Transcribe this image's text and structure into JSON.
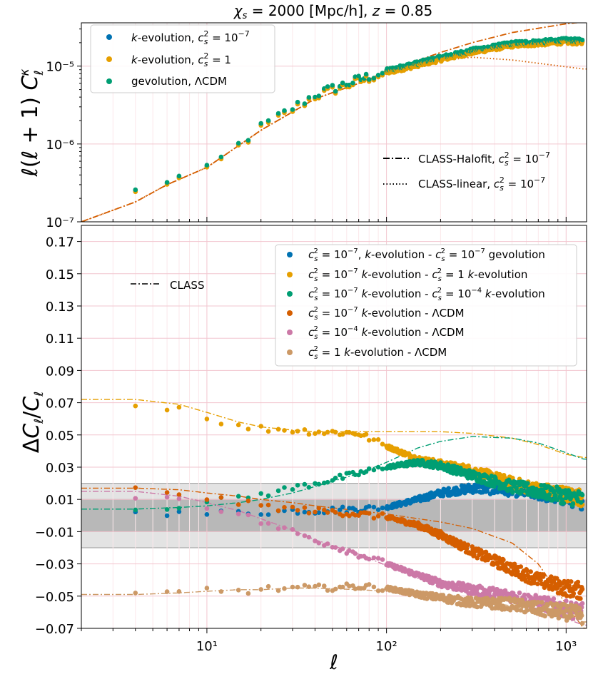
{
  "chart_data": [
    {
      "type": "scatter",
      "title": "χ_s = 2000 [Mpc/h], z = 0.85",
      "xlabel": "ℓ",
      "ylabel": "ℓ(ℓ+1) C_ℓ^κ",
      "xscale": "log",
      "yscale": "log",
      "xlim": [
        2,
        1300
      ],
      "ylim": [
        1e-07,
        3.6e-05
      ],
      "x_ticks": [
        10,
        100,
        1000
      ],
      "x_tick_labels": [
        "10¹",
        "10²",
        "10³"
      ],
      "y_ticks": [
        1e-07,
        1e-06,
        1e-05
      ],
      "y_tick_labels": [
        "10⁻⁷",
        "10⁻⁶",
        "10⁻⁵"
      ],
      "grid": true,
      "series": [
        {
          "name": "k-evolution, c_s² = 10⁻⁷",
          "color": "#0072B2",
          "kind": "points",
          "model": "kevol_1e7"
        },
        {
          "name": "k-evolution, c_s² = 1",
          "color": "#E69F00",
          "kind": "points",
          "model": "kevol_1"
        },
        {
          "name": "gevolution, ΛCDM",
          "color": "#009E73",
          "kind": "points",
          "model": "gevol"
        },
        {
          "name": "CLASS-Halofit, c_s² = 10⁻⁷",
          "color": "#D55E00",
          "kind": "dashdot",
          "model": "halofit"
        },
        {
          "name": "CLASS-linear, c_s² = 10⁻⁷",
          "color": "#D55E00",
          "kind": "dotted",
          "model": "linear"
        }
      ],
      "anchor_points": {
        "x": [
          2,
          4,
          6,
          10,
          20,
          40,
          70,
          100,
          200,
          300,
          500,
          1000,
          1250
        ],
        "y_halofit": [
          1e-07,
          1.8e-07,
          3e-07,
          5e-07,
          1.5e-06,
          3.8e-06,
          6e-06,
          8.5e-06,
          1.5e-05,
          2e-05,
          2.7e-05,
          3.5e-05,
          3.7e-05
        ],
        "y_linear": [
          1e-07,
          1.8e-07,
          3e-07,
          5e-07,
          1.5e-06,
          3.8e-06,
          6e-06,
          8.3e-06,
          1.18e-05,
          1.3e-05,
          1.2e-05,
          9.8e-06,
          9.2e-06
        ],
        "y_sim": [
          null,
          null,
          3.3e-07,
          4.5e-07,
          1.6e-06,
          4.2e-06,
          6.5e-06,
          8.5e-06,
          1.25e-05,
          1.55e-05,
          1.9e-05,
          2.1e-05,
          2.05e-05
        ]
      },
      "legend": {
        "position": "upper-left",
        "entries": [
          "k-evolution, c_s² = 10⁻⁷",
          "k-evolution, c_s² = 1",
          "gevolution, ΛCDM"
        ]
      },
      "legend2": {
        "position": "lower-right",
        "entries": [
          "CLASS-Halofit, c_s² = 10⁻⁷",
          "CLASS-linear, c_s² = 10⁻⁷"
        ]
      }
    },
    {
      "type": "scatter",
      "xlabel": "ℓ",
      "ylabel": "ΔC_ℓ / C_ℓ",
      "xscale": "log",
      "xlim": [
        2,
        1300
      ],
      "ylim": [
        -0.07,
        0.18
      ],
      "x_ticks": [
        10,
        100,
        1000
      ],
      "x_tick_labels": [
        "10¹",
        "10²",
        "10³"
      ],
      "y_ticks": [
        -0.07,
        -0.05,
        -0.03,
        -0.01,
        0.01,
        0.03,
        0.05,
        0.07,
        0.09,
        0.11,
        0.13,
        0.15,
        0.17
      ],
      "y_tick_labels": [
        "−0.07",
        "−0.05",
        "−0.03",
        "−0.01",
        "0.01",
        "0.03",
        "0.05",
        "0.07",
        "0.09",
        "0.11",
        "0.13",
        "0.15",
        "0.17"
      ],
      "grid": true,
      "bands": [
        {
          "range": [
            -0.02,
            0.02
          ],
          "color": "#e3e3e3"
        },
        {
          "range": [
            -0.01,
            0.01
          ],
          "color": "#b8b8b8"
        }
      ],
      "x_points": [
        4,
        7,
        10,
        15,
        20,
        30,
        40,
        70,
        100,
        150,
        200,
        300,
        500,
        700,
        1000,
        1250
      ],
      "series": [
        {
          "name": "c_s² = 10⁻⁷, k-evolution - c_s² = 10⁻⁷ gevolution",
          "color": "#0072B2",
          "values": [
            0.004,
            0.001,
            0.001,
            0.002,
            0.002,
            0.003,
            0.003,
            0.004,
            0.005,
            0.01,
            0.014,
            0.017,
            0.016,
            0.014,
            0.011,
            0.009
          ],
          "class": null
        },
        {
          "name": "c_s² = 10⁻⁷  k-evolution - c_s² = 1  k-evolution",
          "color": "#E69F00",
          "values": [
            0.068,
            0.067,
            0.061,
            0.055,
            0.054,
            0.053,
            0.052,
            0.051,
            0.043,
            0.035,
            0.032,
            0.028,
            0.02,
            0.016,
            0.013,
            0.011
          ],
          "class": [
            0.072,
            0.069,
            0.064,
            0.058,
            0.055,
            0.053,
            0.052,
            0.052,
            0.052,
            0.052,
            0.052,
            0.051,
            0.048,
            0.044,
            0.038,
            0.036
          ]
        },
        {
          "name": "c_s² = 10⁻⁷  k-evolution - c_s² = 10⁻⁴  k-evolution",
          "color": "#009E73",
          "values": [
            0.004,
            0.006,
            0.008,
            0.011,
            0.013,
            0.017,
            0.02,
            0.026,
            0.03,
            0.033,
            0.031,
            0.025,
            0.018,
            0.015,
            0.012,
            0.01
          ],
          "class": [
            0.004,
            0.005,
            0.006,
            0.008,
            0.01,
            0.014,
            0.018,
            0.026,
            0.033,
            0.042,
            0.046,
            0.049,
            0.048,
            0.045,
            0.039,
            0.035
          ]
        },
        {
          "name": "c_s² = 10⁻⁷  k-evolution - ΛCDM",
          "color": "#D55E00",
          "values": [
            0.016,
            0.014,
            0.011,
            0.008,
            0.006,
            0.004,
            0.003,
            0.001,
            -0.001,
            -0.006,
            -0.012,
            -0.022,
            -0.033,
            -0.04,
            -0.045,
            -0.047
          ],
          "class": [
            0.017,
            0.016,
            0.014,
            0.012,
            0.01,
            0.008,
            0.006,
            0.003,
            0.001,
            -0.002,
            -0.004,
            -0.008,
            -0.017,
            -0.03,
            -0.055,
            -0.07
          ]
        },
        {
          "name": "c_s² = 10⁻⁴  k-evolution - ΛCDM",
          "color": "#CC79A7",
          "values": [
            0.012,
            0.011,
            0.006,
            0.001,
            -0.004,
            -0.01,
            -0.015,
            -0.024,
            -0.03,
            -0.037,
            -0.042,
            -0.046,
            -0.05,
            -0.054,
            -0.058,
            -0.06
          ],
          "class": [
            0.015,
            0.012,
            0.008,
            0.003,
            -0.002,
            -0.009,
            -0.015,
            -0.024,
            -0.031,
            -0.039,
            -0.043,
            -0.048,
            -0.053,
            -0.058,
            -0.064,
            -0.068
          ]
        },
        {
          "name": "c_s² = 1  k-evolution - ΛCDM",
          "color": "#CC9966",
          "values": [
            -0.049,
            -0.048,
            -0.046,
            -0.047,
            -0.046,
            -0.045,
            -0.045,
            -0.044,
            -0.045,
            -0.049,
            -0.051,
            -0.054,
            -0.055,
            -0.058,
            -0.06,
            -0.062
          ],
          "class": [
            -0.049,
            -0.048,
            -0.047,
            -0.046,
            -0.046,
            -0.045,
            -0.045,
            -0.046,
            -0.047,
            -0.049,
            -0.051,
            -0.053,
            -0.056,
            -0.06,
            -0.064,
            -0.066
          ]
        }
      ],
      "legend": {
        "position": "upper-right"
      },
      "legend2": {
        "position": "upper-left",
        "entries": [
          "CLASS"
        ]
      }
    }
  ]
}
